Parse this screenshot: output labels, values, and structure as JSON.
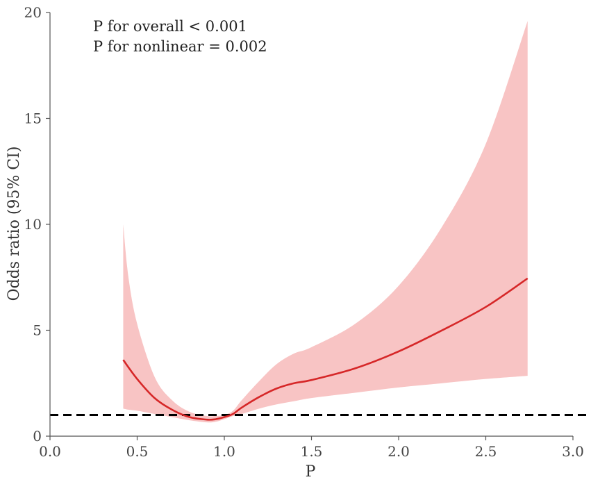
{
  "chart_data": {
    "type": "line",
    "title": "",
    "xlabel": "P",
    "ylabel": "Odds ratio (95% CI)",
    "xlim": [
      0.0,
      3.0
    ],
    "ylim": [
      0,
      20
    ],
    "x_ticks": [
      "0.0",
      "0.5",
      "1.0",
      "1.5",
      "2.0",
      "2.5",
      "3.0"
    ],
    "y_ticks": [
      "0",
      "5",
      "10",
      "15",
      "20"
    ],
    "annotations": [
      "P for overall < 0.001",
      "P for nonlinear = 0.002"
    ],
    "reference_line": {
      "y": 1,
      "style": "dashed",
      "color": "#000000"
    },
    "grid": false,
    "series": [
      {
        "kind": "estimate",
        "color": "#d62728",
        "x": [
          0.42,
          0.5,
          0.6,
          0.7,
          0.8,
          0.9,
          0.95,
          1.0,
          1.05,
          1.1,
          1.2,
          1.3,
          1.4,
          1.5,
          1.75,
          2.0,
          2.25,
          2.5,
          2.74
        ],
        "y": [
          3.6,
          2.7,
          1.8,
          1.25,
          0.9,
          0.78,
          0.8,
          0.9,
          1.05,
          1.35,
          1.85,
          2.25,
          2.5,
          2.65,
          3.2,
          4.0,
          5.0,
          6.1,
          7.45
        ]
      },
      {
        "kind": "ci_band",
        "color": "#f8c4c4",
        "x": [
          0.42,
          0.45,
          0.5,
          0.6,
          0.7,
          0.8,
          0.9,
          0.95,
          1.0,
          1.05,
          1.1,
          1.2,
          1.3,
          1.4,
          1.5,
          1.75,
          2.0,
          2.25,
          2.5,
          2.74
        ],
        "lower": [
          1.3,
          1.25,
          1.2,
          1.05,
          0.9,
          0.75,
          0.65,
          0.68,
          0.8,
          0.95,
          1.05,
          1.3,
          1.5,
          1.65,
          1.8,
          2.05,
          2.3,
          2.5,
          2.7,
          2.85
        ],
        "upper": [
          10.0,
          7.5,
          5.3,
          2.8,
          1.7,
          1.15,
          0.95,
          0.95,
          1.0,
          1.2,
          1.7,
          2.6,
          3.4,
          3.9,
          4.2,
          5.3,
          7.1,
          9.9,
          13.8,
          19.6
        ]
      }
    ]
  }
}
